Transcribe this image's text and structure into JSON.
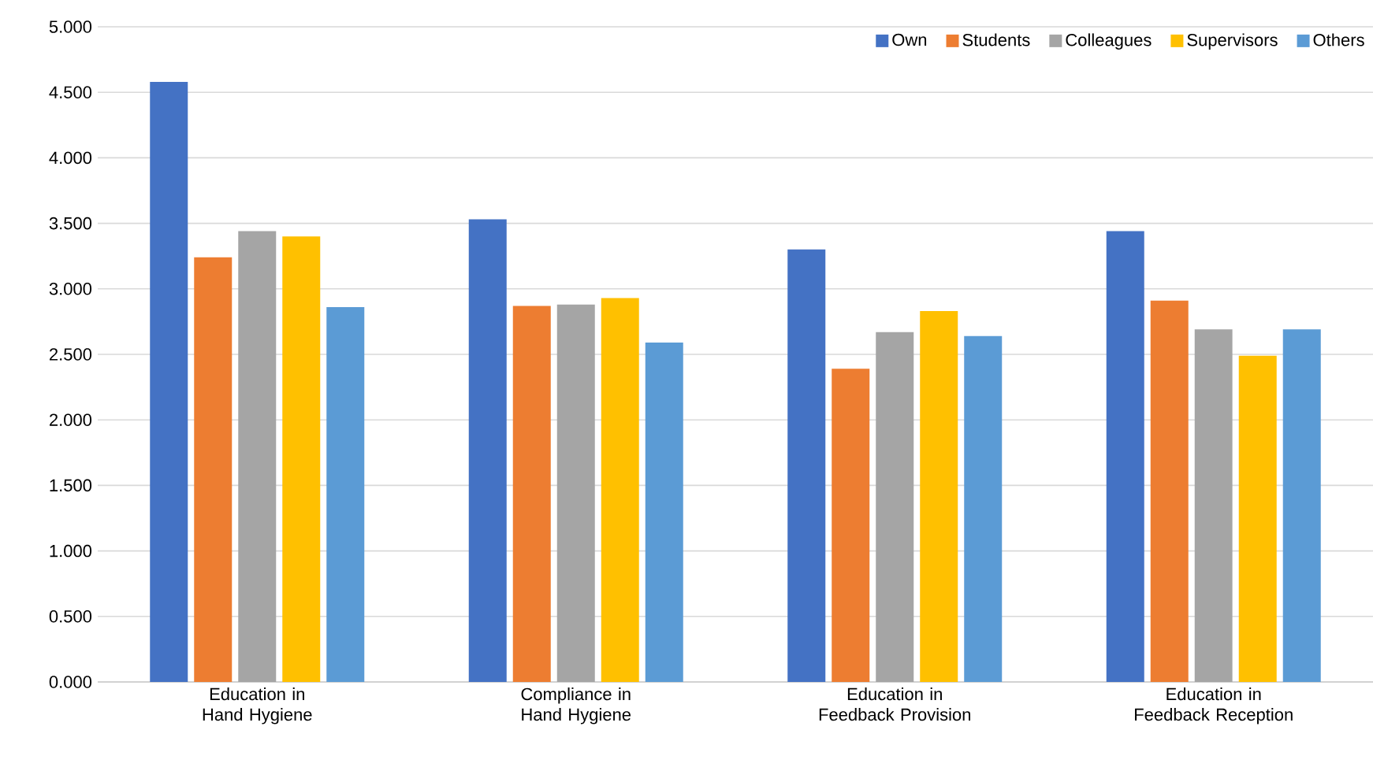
{
  "chart_data": {
    "type": "bar",
    "categories": [
      "Education in Hand Hygiene",
      "Compliance in Hand Hygiene",
      "Education in Feedback Provision",
      "Education in Feedback Reception"
    ],
    "series": [
      {
        "name": "Own",
        "color": "#4472c4",
        "values": [
          4.58,
          3.53,
          3.3,
          3.44
        ]
      },
      {
        "name": "Students",
        "color": "#ed7d31",
        "values": [
          3.24,
          2.87,
          2.39,
          2.91
        ]
      },
      {
        "name": "Colleagues",
        "color": "#a5a5a5",
        "values": [
          3.44,
          2.88,
          2.67,
          2.69
        ]
      },
      {
        "name": "Supervisors",
        "color": "#ffc000",
        "values": [
          3.4,
          2.93,
          2.83,
          2.49
        ]
      },
      {
        "name": "Others",
        "color": "#5b9bd5",
        "values": [
          2.86,
          2.59,
          2.64,
          2.69
        ]
      }
    ],
    "ylim": [
      0,
      5
    ],
    "yticks": [
      {
        "value": 0,
        "label": "0.000"
      },
      {
        "value": 0.5,
        "label": "0.500"
      },
      {
        "value": 1,
        "label": "1.000"
      },
      {
        "value": 1.5,
        "label": "1.500"
      },
      {
        "value": 2,
        "label": "2.000"
      },
      {
        "value": 2.5,
        "label": "2.500"
      },
      {
        "value": 3,
        "label": "3.000"
      },
      {
        "value": 3.5,
        "label": "3.500"
      },
      {
        "value": 4,
        "label": "4.000"
      },
      {
        "value": 4.5,
        "label": "4.500"
      },
      {
        "value": 5,
        "label": "5.000"
      }
    ],
    "grid": "y",
    "legend": "top right"
  }
}
